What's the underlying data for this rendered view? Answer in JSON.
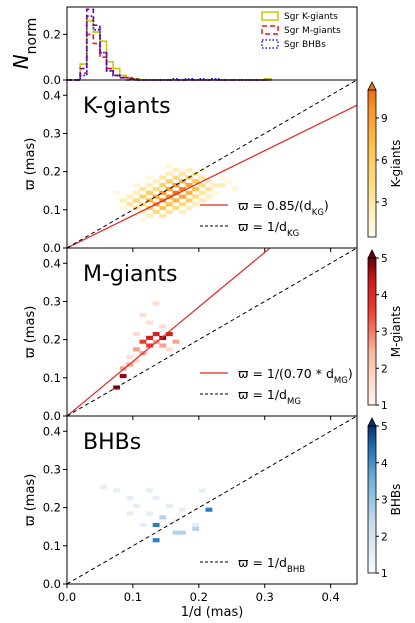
{
  "chart_data": [
    {
      "type": "line",
      "panel": "histogram",
      "ylabel": "N",
      "ylabel_sub": "norm",
      "ylim": [
        0,
        0.32
      ],
      "yticks": [
        "0.0",
        "0.2"
      ],
      "xlim": [
        0,
        0.44
      ],
      "bin_edges": [
        0.0,
        0.01,
        0.02,
        0.03,
        0.04,
        0.05,
        0.06,
        0.07,
        0.08,
        0.09,
        0.1,
        0.11,
        0.12,
        0.13,
        0.14,
        0.15,
        0.16,
        0.17,
        0.18,
        0.19,
        0.2,
        0.21,
        0.22,
        0.23,
        0.24,
        0.25,
        0.26,
        0.27,
        0.28,
        0.29,
        0.3,
        0.31
      ],
      "series": [
        {
          "name": "Sgr K-giants",
          "color": "#c8c800",
          "dash": "",
          "width": 1.6,
          "values": [
            0,
            0,
            0.07,
            0.26,
            0.21,
            0.17,
            0.08,
            0.05,
            0.02,
            0.01,
            0.005,
            0,
            0,
            0,
            0,
            0,
            0,
            0,
            0,
            0,
            0,
            0,
            0,
            0,
            0,
            0,
            0,
            0,
            0,
            0,
            0.005
          ]
        },
        {
          "name": "Sgr M-giants",
          "color": "#e41a1c",
          "dash": "5,3",
          "width": 1.6,
          "values": [
            0,
            0,
            0.03,
            0.2,
            0.16,
            0.1,
            0.05,
            0.02,
            0.01,
            0.005,
            0,
            0,
            0,
            0,
            0,
            0,
            0,
            0,
            0,
            0,
            0,
            0,
            0,
            0,
            0,
            0,
            0,
            0,
            0,
            0,
            0
          ]
        },
        {
          "name": "Sgr BHBs",
          "color": "#1a1ad6",
          "dash": "1.5,2",
          "width": 1.8,
          "values": [
            0,
            0,
            0.02,
            0.28,
            0.22,
            0.12,
            0.04,
            0.02,
            0.01,
            0.01,
            0.005,
            0,
            0,
            0,
            0,
            0,
            0.005,
            0,
            0.005,
            0,
            0.005,
            0,
            0.005,
            0,
            0,
            0,
            0,
            0,
            0,
            0,
            0
          ]
        },
        {
          "name": "",
          "color": "#7a00a0",
          "dash": "5,3",
          "width": 1.6,
          "values": [
            0,
            0,
            0.05,
            0.31,
            0.24,
            0.12,
            0.04,
            0.02,
            0.01,
            0,
            0,
            0,
            0,
            0,
            0,
            0,
            0,
            0,
            0,
            0,
            0,
            0,
            0,
            0,
            0,
            0,
            0,
            0,
            0,
            0,
            0
          ]
        }
      ],
      "legend": [
        "Sgr K-giants",
        "Sgr M-giants",
        "Sgr BHBs"
      ],
      "legend_position": "top-right"
    },
    {
      "type": "heatmap",
      "panel": "kgiants",
      "title": "K-giants",
      "ylabel": "ϖ (mas)",
      "xlim": [
        0,
        0.44
      ],
      "ylim": [
        0,
        0.44
      ],
      "yticks": [
        "0.0",
        "0.1",
        "0.2",
        "0.3",
        "0.4"
      ],
      "cmap": "orange",
      "cbar_label": "K-giants",
      "cbar_ticks": [
        "3",
        "6",
        "9"
      ],
      "cbar_values": [
        3,
        6,
        9
      ],
      "cbar_max": 11,
      "fit_label": "ϖ = 0.85/(d",
      "fit_label_sub": "KG",
      "fit_label_end": ")",
      "ref_label": "ϖ = 1/d",
      "ref_label_sub": "KG",
      "fit_slope": 0.85,
      "ref_slope": 1.0,
      "cells": [
        [
          0.08,
          0.12,
          2
        ],
        [
          0.08,
          0.1,
          1
        ],
        [
          0.09,
          0.13,
          2
        ],
        [
          0.09,
          0.11,
          3
        ],
        [
          0.1,
          0.14,
          2
        ],
        [
          0.1,
          0.12,
          4
        ],
        [
          0.1,
          0.1,
          3
        ],
        [
          0.11,
          0.15,
          3
        ],
        [
          0.11,
          0.13,
          5
        ],
        [
          0.11,
          0.11,
          4
        ],
        [
          0.11,
          0.09,
          2
        ],
        [
          0.12,
          0.16,
          2
        ],
        [
          0.12,
          0.14,
          5
        ],
        [
          0.12,
          0.12,
          7
        ],
        [
          0.12,
          0.1,
          5
        ],
        [
          0.12,
          0.08,
          2
        ],
        [
          0.13,
          0.17,
          2
        ],
        [
          0.13,
          0.15,
          4
        ],
        [
          0.13,
          0.13,
          8
        ],
        [
          0.13,
          0.11,
          9
        ],
        [
          0.13,
          0.09,
          4
        ],
        [
          0.14,
          0.18,
          3
        ],
        [
          0.14,
          0.16,
          5
        ],
        [
          0.14,
          0.14,
          9
        ],
        [
          0.14,
          0.12,
          10
        ],
        [
          0.14,
          0.1,
          6
        ],
        [
          0.14,
          0.08,
          3
        ],
        [
          0.15,
          0.19,
          2
        ],
        [
          0.15,
          0.17,
          5
        ],
        [
          0.15,
          0.15,
          8
        ],
        [
          0.15,
          0.13,
          9
        ],
        [
          0.15,
          0.11,
          6
        ],
        [
          0.15,
          0.09,
          3
        ],
        [
          0.16,
          0.2,
          2
        ],
        [
          0.16,
          0.18,
          4
        ],
        [
          0.16,
          0.16,
          9
        ],
        [
          0.16,
          0.14,
          11
        ],
        [
          0.16,
          0.12,
          7
        ],
        [
          0.16,
          0.1,
          4
        ],
        [
          0.17,
          0.19,
          3
        ],
        [
          0.17,
          0.17,
          7
        ],
        [
          0.17,
          0.15,
          10
        ],
        [
          0.17,
          0.13,
          8
        ],
        [
          0.17,
          0.11,
          4
        ],
        [
          0.17,
          0.09,
          2
        ],
        [
          0.18,
          0.2,
          2
        ],
        [
          0.18,
          0.18,
          5
        ],
        [
          0.18,
          0.16,
          8
        ],
        [
          0.18,
          0.14,
          7
        ],
        [
          0.18,
          0.12,
          5
        ],
        [
          0.18,
          0.1,
          2
        ],
        [
          0.19,
          0.19,
          3
        ],
        [
          0.19,
          0.17,
          6
        ],
        [
          0.19,
          0.15,
          6
        ],
        [
          0.19,
          0.13,
          4
        ],
        [
          0.19,
          0.11,
          2
        ],
        [
          0.2,
          0.18,
          3
        ],
        [
          0.2,
          0.16,
          4
        ],
        [
          0.2,
          0.14,
          3
        ],
        [
          0.2,
          0.12,
          2
        ],
        [
          0.21,
          0.17,
          2
        ],
        [
          0.21,
          0.15,
          3
        ],
        [
          0.21,
          0.13,
          2
        ],
        [
          0.22,
          0.16,
          2
        ],
        [
          0.22,
          0.14,
          1
        ],
        [
          0.23,
          0.18,
          1
        ],
        [
          0.23,
          0.16,
          2
        ],
        [
          0.24,
          0.17,
          1
        ],
        [
          0.07,
          0.14,
          1
        ],
        [
          0.1,
          0.16,
          1
        ],
        [
          0.12,
          0.18,
          1
        ],
        [
          0.15,
          0.21,
          1
        ],
        [
          0.2,
          0.2,
          1
        ],
        [
          0.25,
          0.15,
          1
        ],
        [
          0.11,
          0.07,
          1
        ]
      ]
    },
    {
      "type": "heatmap",
      "panel": "mgiants",
      "title": "M-giants",
      "ylabel": "ϖ (mas)",
      "xlim": [
        0,
        0.44
      ],
      "ylim": [
        0,
        0.44
      ],
      "yticks": [
        "0.0",
        "0.1",
        "0.2",
        "0.3",
        "0.4"
      ],
      "cmap": "red",
      "cbar_label": "M-giants",
      "cbar_ticks": [
        "1",
        "2",
        "3",
        "4",
        "5"
      ],
      "cbar_values": [
        1,
        2,
        3,
        4,
        5
      ],
      "cbar_max": 5,
      "fit_label": "ϖ = 1/(0.70 * d",
      "fit_label_sub": "MG",
      "fit_label_end": ")",
      "ref_label": "ϖ = 1/d",
      "ref_label_sub": "MG",
      "fit_slope": 1.4286,
      "ref_slope": 1.0,
      "cells": [
        [
          0.07,
          0.07,
          5
        ],
        [
          0.08,
          0.1,
          5
        ],
        [
          0.08,
          0.12,
          2
        ],
        [
          0.09,
          0.13,
          2
        ],
        [
          0.09,
          0.15,
          1
        ],
        [
          0.1,
          0.17,
          2
        ],
        [
          0.1,
          0.14,
          1
        ],
        [
          0.11,
          0.19,
          3
        ],
        [
          0.11,
          0.16,
          2
        ],
        [
          0.12,
          0.2,
          4
        ],
        [
          0.12,
          0.18,
          3
        ],
        [
          0.12,
          0.24,
          1
        ],
        [
          0.13,
          0.21,
          4
        ],
        [
          0.13,
          0.19,
          2
        ],
        [
          0.14,
          0.2,
          5
        ],
        [
          0.14,
          0.18,
          2
        ],
        [
          0.15,
          0.21,
          4
        ],
        [
          0.15,
          0.17,
          1
        ],
        [
          0.16,
          0.19,
          2
        ],
        [
          0.14,
          0.23,
          1
        ],
        [
          0.11,
          0.26,
          1
        ],
        [
          0.13,
          0.29,
          1
        ],
        [
          0.1,
          0.21,
          1
        ]
      ]
    },
    {
      "type": "heatmap",
      "panel": "bhbs",
      "title": "BHBs",
      "ylabel": "ϖ (mas)",
      "xlabel": "1/d (mas)",
      "xlim": [
        0,
        0.44
      ],
      "ylim": [
        0,
        0.44
      ],
      "xticks": [
        "0.0",
        "0.1",
        "0.2",
        "0.3",
        "0.4"
      ],
      "yticks": [
        "0.0",
        "0.1",
        "0.2",
        "0.3",
        "0.4"
      ],
      "cmap": "blue",
      "cbar_label": "BHBs",
      "cbar_ticks": [
        "1",
        "2",
        "3",
        "4",
        "5"
      ],
      "cbar_values": [
        1,
        2,
        3,
        4,
        5
      ],
      "cbar_max": 5,
      "ref_label": "ϖ = 1/d",
      "ref_label_sub": "BHB",
      "ref_slope": 1.0,
      "cells": [
        [
          0.05,
          0.25,
          1
        ],
        [
          0.07,
          0.24,
          1
        ],
        [
          0.09,
          0.22,
          1
        ],
        [
          0.12,
          0.24,
          1
        ],
        [
          0.13,
          0.22,
          1
        ],
        [
          0.1,
          0.2,
          1
        ],
        [
          0.12,
          0.18,
          1
        ],
        [
          0.14,
          0.17,
          2
        ],
        [
          0.15,
          0.2,
          1
        ],
        [
          0.17,
          0.19,
          1
        ],
        [
          0.16,
          0.16,
          1
        ],
        [
          0.19,
          0.15,
          1
        ],
        [
          0.16,
          0.13,
          2
        ],
        [
          0.17,
          0.13,
          2
        ],
        [
          0.13,
          0.15,
          4
        ],
        [
          0.13,
          0.11,
          4
        ],
        [
          0.21,
          0.19,
          4
        ],
        [
          0.19,
          0.14,
          2
        ],
        [
          0.09,
          0.18,
          1
        ],
        [
          0.2,
          0.24,
          1
        ],
        [
          0.11,
          0.15,
          1
        ]
      ]
    }
  ]
}
